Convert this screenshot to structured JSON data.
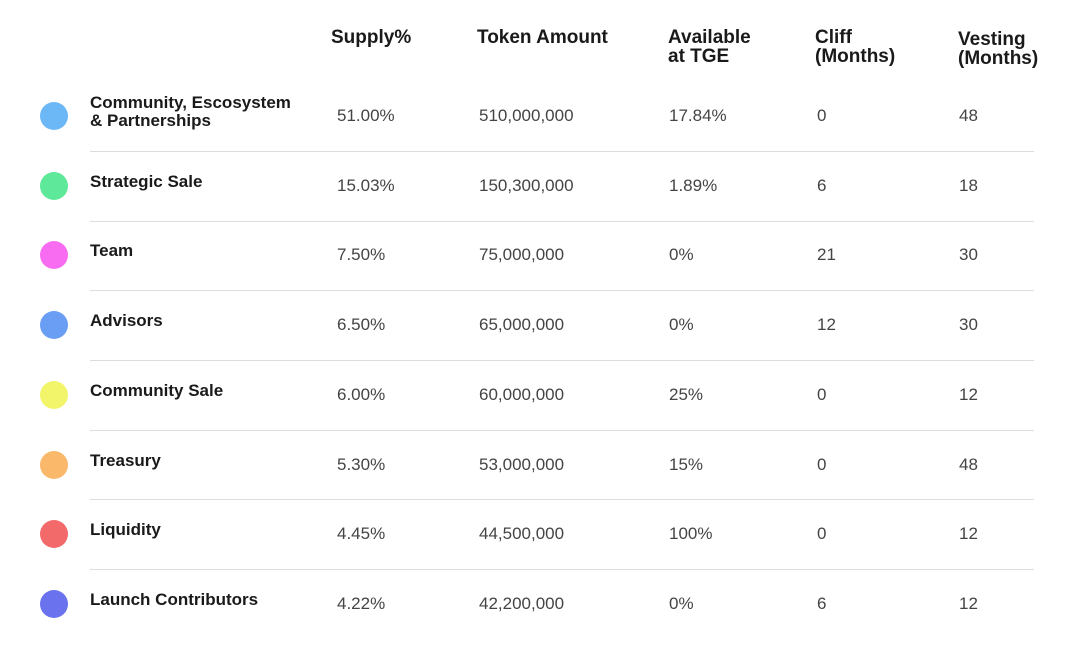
{
  "table": {
    "header": [
      "Supply%",
      "Token Amount",
      "Available\nat TGE",
      "Cliff\n(Months)",
      "Vesting\n(Months)"
    ],
    "rows": [
      [
        "Community, Escosystem\n& Partnerships",
        "51.00%",
        "510,000,000",
        "17.84%",
        "0",
        "48"
      ],
      [
        "Strategic Sale",
        "15.03%",
        "150,300,000",
        "1.89%",
        "6",
        "18"
      ],
      [
        "Team",
        "7.50%",
        "75,000,000",
        "0%",
        "21",
        "30"
      ],
      [
        "Advisors",
        "6.50%",
        "65,000,000",
        "0%",
        "12",
        "30"
      ],
      [
        "Community Sale",
        "6.00%",
        "60,000,000",
        "25%",
        "0",
        "12"
      ],
      [
        "Treasury",
        "5.30%",
        "53,000,000",
        "15%",
        "0",
        "48"
      ],
      [
        "Liquidity",
        "4.45%",
        "44,500,000",
        "100%",
        "0",
        "12"
      ],
      [
        "Launch Contributors",
        "4.22%",
        "42,200,000",
        "0%",
        "6",
        "12"
      ]
    ],
    "dot_colors": [
      "#6cb8f7",
      "#5ee89a",
      "#f76cf0",
      "#6a9ef4",
      "#f2f56a",
      "#f9b86a",
      "#f26a6a",
      "#6a72ee"
    ]
  }
}
